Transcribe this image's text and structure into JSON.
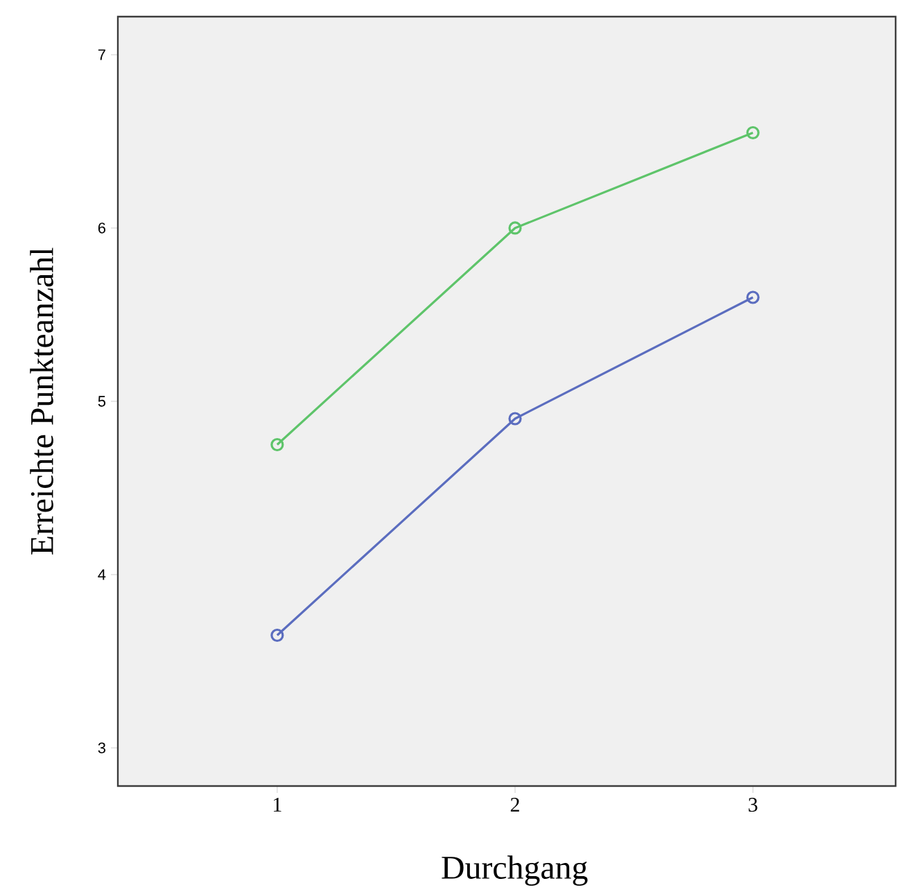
{
  "chart_data": {
    "type": "line",
    "xlabel": "Durchgang",
    "ylabel": "Erreichte Punkteanzahl",
    "x": [
      1,
      2,
      3
    ],
    "series": [
      {
        "color": "#5ec46a",
        "values": [
          4.75,
          6.0,
          6.55
        ]
      },
      {
        "color": "#5b6dbf",
        "values": [
          3.65,
          4.9,
          5.6
        ]
      }
    ],
    "xlim": [
      0.33,
      3.6
    ],
    "xticks": [
      1,
      2,
      3
    ],
    "ylim": [
      2.78,
      7.22
    ],
    "yticks": [
      3,
      4,
      5,
      6,
      7
    ],
    "grid": false,
    "marker": "circle",
    "line_style": "solid"
  }
}
